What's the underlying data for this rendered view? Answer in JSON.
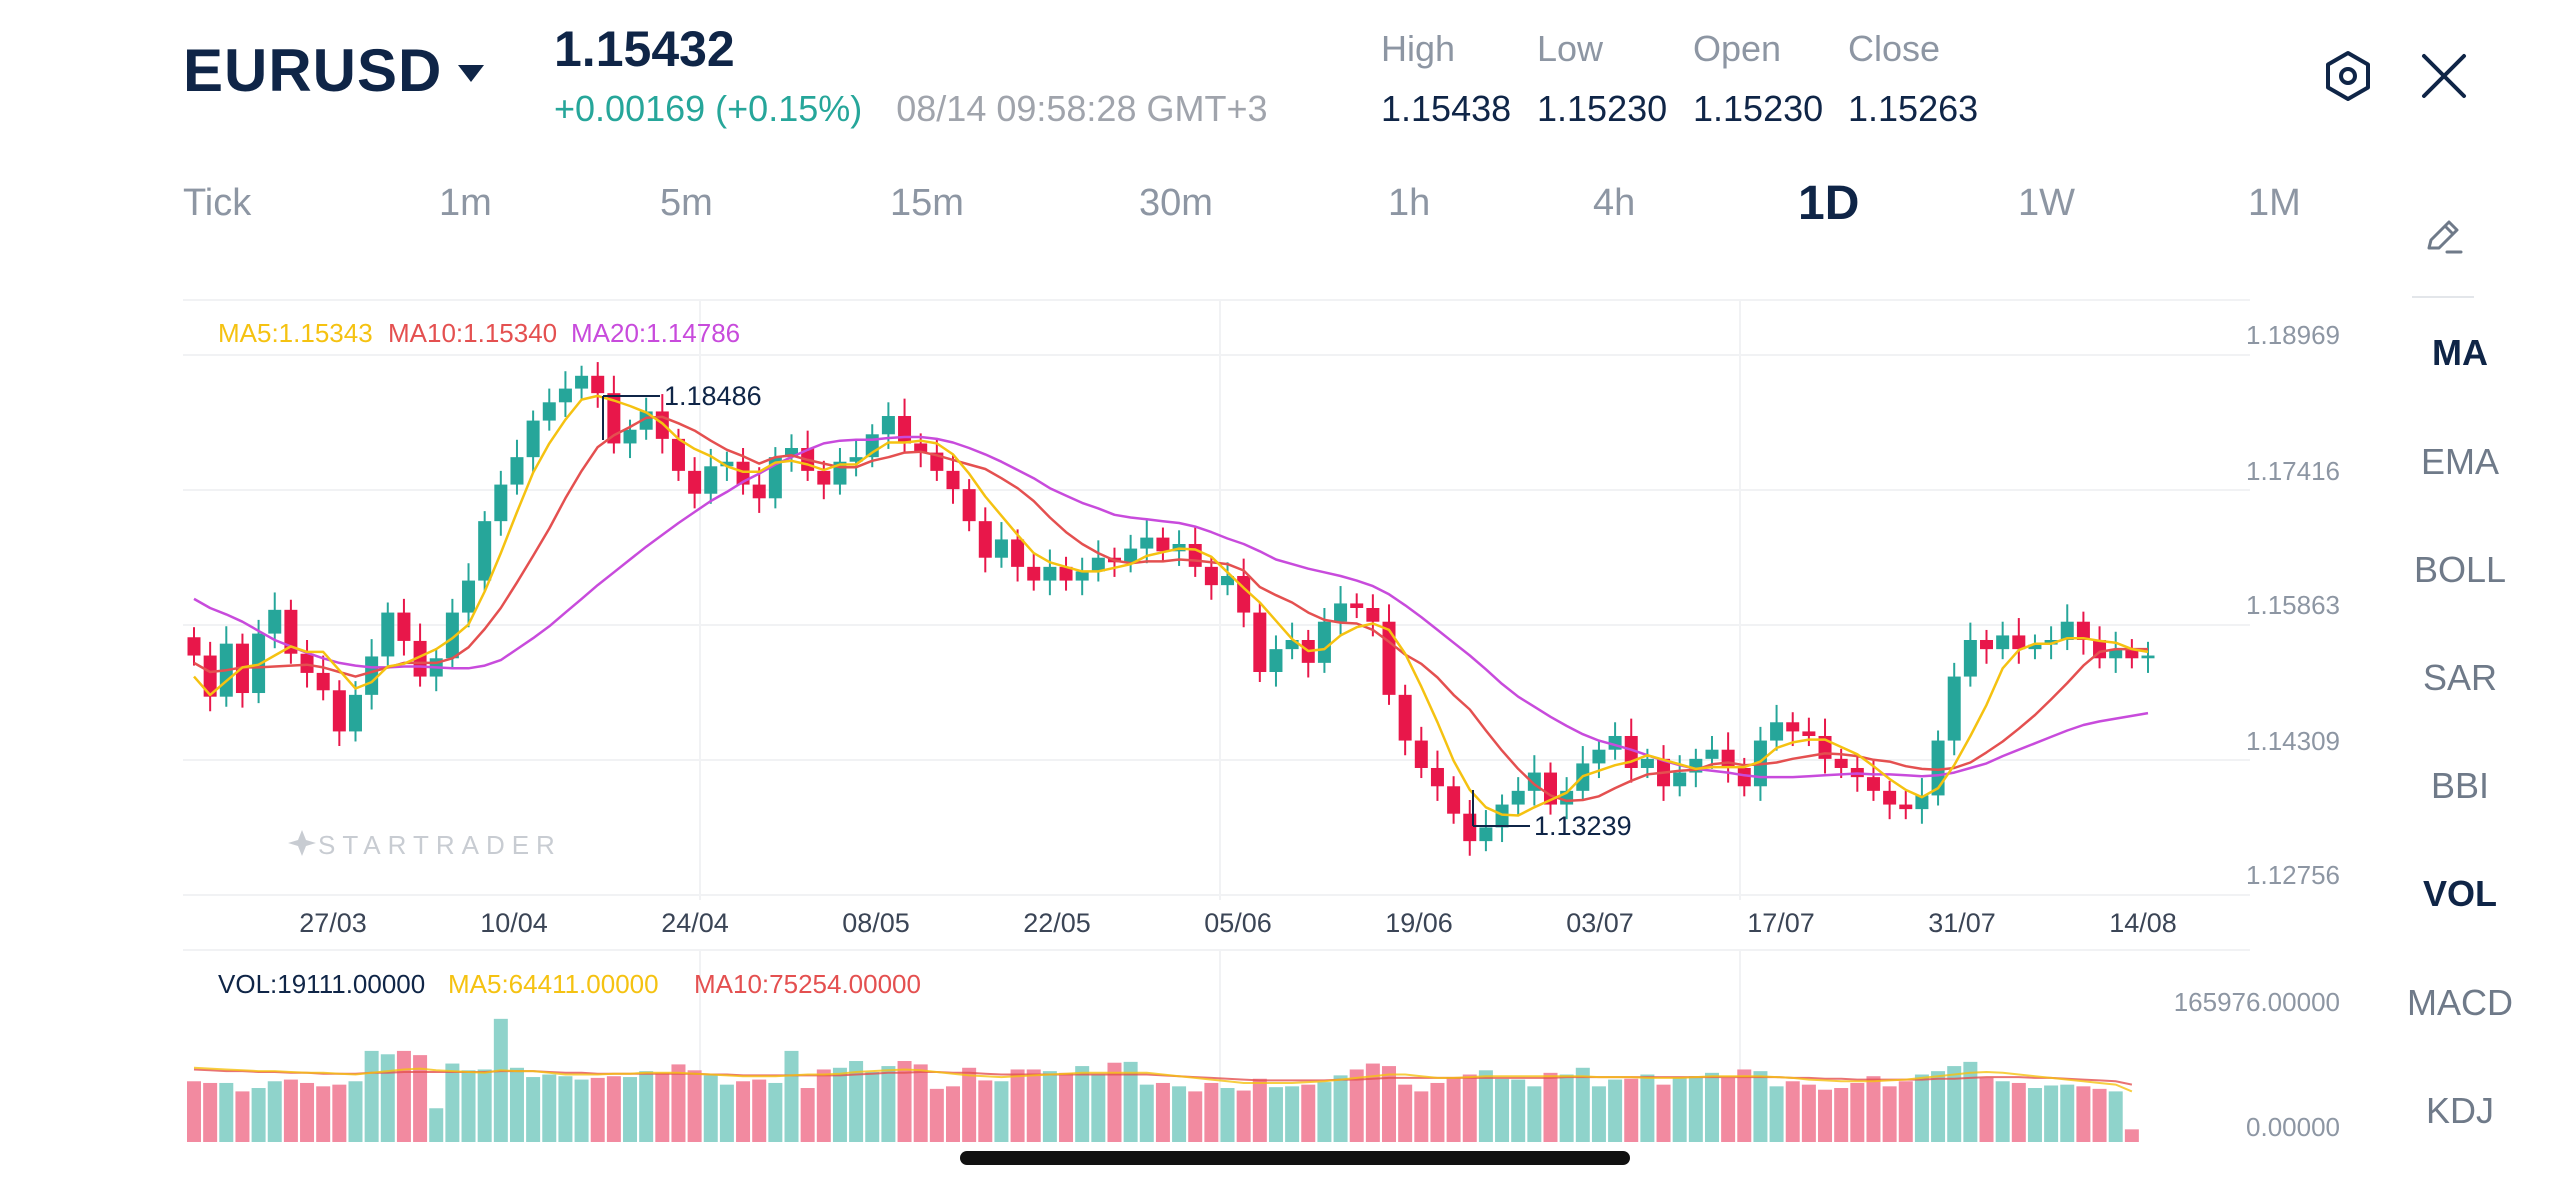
{
  "header": {
    "symbol": "EURUSD",
    "price": "1.15432",
    "change": "+0.00169 (+0.15%)",
    "time": "08/14 09:58:28 GMT+3",
    "ohlc": [
      {
        "label": "High",
        "value": "1.15438"
      },
      {
        "label": "Low",
        "value": "1.15230"
      },
      {
        "label": "Open",
        "value": "1.15230"
      },
      {
        "label": "Close",
        "value": "1.15263"
      }
    ]
  },
  "icons": {
    "settings": "hexagon-gear-icon",
    "close": "close-icon",
    "draw": "pencil-icon"
  },
  "timeframes": [
    "Tick",
    "1m",
    "5m",
    "15m",
    "30m",
    "1h",
    "4h",
    "1D",
    "1W",
    "1M"
  ],
  "active_timeframe": "1D",
  "indicators": [
    "MA",
    "EMA",
    "BOLL",
    "SAR",
    "BBI",
    "VOL",
    "MACD",
    "KDJ"
  ],
  "active_indicators": [
    "MA",
    "VOL"
  ],
  "colors": {
    "up": "#26a69a",
    "down": "#e8174a",
    "ma5": "#f5c211",
    "ma10": "#e45050",
    "ma20": "#c84bdc",
    "vol_up": "#8fd3cb",
    "vol_down": "#f28aa0"
  },
  "watermark": "STARTRADER",
  "chart_data": {
    "type": "candlestick",
    "legend": {
      "ma5": "MA5:1.15343",
      "ma10": "MA10:1.15340",
      "ma20": "MA20:1.14786"
    },
    "y_ticks": [
      "1.18969",
      "1.17416",
      "1.15863",
      "1.14309",
      "1.12756"
    ],
    "ylim": [
      1.12756,
      1.18969
    ],
    "x_ticks": [
      "27/03",
      "10/04",
      "24/04",
      "08/05",
      "22/05",
      "05/06",
      "19/06",
      "03/07",
      "17/07",
      "31/07",
      "14/08"
    ],
    "high_marker": "1.18486",
    "low_marker": "1.13239",
    "close_series": [
      1.1543,
      1.1498,
      1.1556,
      1.1502,
      1.1567,
      1.1593,
      1.1545,
      1.1524,
      1.1505,
      1.146,
      1.15,
      1.1542,
      1.159,
      1.1559,
      1.152,
      1.154,
      1.159,
      1.1625,
      1.169,
      1.173,
      1.176,
      1.18,
      1.182,
      1.1835,
      1.1849,
      1.183,
      1.1775,
      1.179,
      1.181,
      1.178,
      1.1745,
      1.172,
      1.175,
      1.1755,
      1.173,
      1.1715,
      1.176,
      1.177,
      1.1745,
      1.173,
      1.1755,
      1.176,
      1.1785,
      1.1805,
      1.1775,
      1.1765,
      1.1745,
      1.1725,
      1.169,
      1.165,
      1.167,
      1.164,
      1.1625,
      1.164,
      1.1625,
      1.1635,
      1.165,
      1.1645,
      1.166,
      1.1672,
      1.1657,
      1.1665,
      1.164,
      1.162,
      1.163,
      1.159,
      1.1525,
      1.155,
      1.156,
      1.1535,
      1.158,
      1.16,
      1.1595,
      1.158,
      1.15,
      1.145,
      1.142,
      1.14,
      1.137,
      1.134,
      1.1355,
      1.138,
      1.1395,
      1.1415,
      1.138,
      1.1395,
      1.1425,
      1.144,
      1.1455,
      1.142,
      1.143,
      1.14,
      1.1415,
      1.143,
      1.144,
      1.142,
      1.14,
      1.145,
      1.147,
      1.146,
      1.1455,
      1.143,
      1.142,
      1.141,
      1.1395,
      1.138,
      1.1375,
      1.139,
      1.145,
      1.152,
      1.156,
      1.155,
      1.1565,
      1.155,
      1.1555,
      1.156,
      1.158,
      1.156,
      1.154,
      1.155,
      1.154,
      1.1543
    ],
    "ma5_series": [
      1.152,
      1.15,
      1.1515,
      1.153,
      1.1533,
      1.1543,
      1.1553,
      1.1547,
      1.1547,
      1.1527,
      1.1507,
      1.1514,
      1.1531,
      1.1534,
      1.1542,
      1.155,
      1.1562,
      1.1577,
      1.1613,
      1.1655,
      1.17,
      1.1743,
      1.1775,
      1.1801,
      1.1823,
      1.1827,
      1.1822,
      1.1816,
      1.1809,
      1.1797,
      1.178,
      1.1769,
      1.1761,
      1.175,
      1.1744,
      1.1744,
      1.1754,
      1.1756,
      1.1752,
      1.1746,
      1.1752,
      1.1752,
      1.1765,
      1.1776,
      1.1776,
      1.1778,
      1.1775,
      1.1763,
      1.1742,
      1.1717,
      1.1696,
      1.1675,
      1.1655,
      1.1645,
      1.164,
      1.1635,
      1.1635,
      1.1639,
      1.1643,
      1.1652,
      1.1656,
      1.166,
      1.1659,
      1.1651,
      1.1634,
      1.1617,
      1.1601,
      1.1581,
      1.1561,
      1.1548,
      1.155,
      1.1565,
      1.1574,
      1.1578,
      1.1571,
      1.1545,
      1.1509,
      1.147,
      1.1428,
      1.1396,
      1.1377,
      1.1369,
      1.1368,
      1.1377,
      1.1385,
      1.1393,
      1.1411,
      1.1417,
      1.1423,
      1.1427,
      1.1434,
      1.1429,
      1.1424,
      1.1419,
      1.1421,
      1.1421,
      1.1421,
      1.1427,
      1.1442,
      1.1448,
      1.1451,
      1.1451,
      1.1443,
      1.1435,
      1.1422,
      1.1408,
      1.1396,
      1.1388,
      1.1398,
      1.1423,
      1.1455,
      1.1489,
      1.1529,
      1.1549,
      1.1556,
      1.1556,
      1.1562,
      1.1562,
      1.1559,
      1.1557,
      1.155,
      1.1547
    ],
    "ma10_series": [
      1.1535,
      1.1525,
      1.1527,
      1.153,
      1.153,
      1.1531,
      1.1532,
      1.1533,
      1.153,
      1.1525,
      1.152,
      1.1525,
      1.153,
      1.1535,
      1.1535,
      1.1535,
      1.154,
      1.1552,
      1.1572,
      1.1595,
      1.1623,
      1.1652,
      1.1682,
      1.1715,
      1.1745,
      1.1771,
      1.1784,
      1.1793,
      1.1803,
      1.1804,
      1.1797,
      1.1789,
      1.1778,
      1.1768,
      1.1761,
      1.1753,
      1.176,
      1.1762,
      1.1757,
      1.1753,
      1.1749,
      1.1749,
      1.1756,
      1.176,
      1.1765,
      1.1766,
      1.1762,
      1.1757,
      1.1752,
      1.1747,
      1.1737,
      1.1726,
      1.1712,
      1.1694,
      1.1678,
      1.1665,
      1.1655,
      1.1647,
      1.1644,
      1.1646,
      1.1646,
      1.1648,
      1.1647,
      1.1645,
      1.1643,
      1.1636,
      1.1618,
      1.1609,
      1.1601,
      1.159,
      1.1582,
      1.1579,
      1.1578,
      1.1571,
      1.1558,
      1.1544,
      1.1534,
      1.1519,
      1.15,
      1.1484,
      1.1461,
      1.1439,
      1.1419,
      1.1402,
      1.139,
      1.1384,
      1.1385,
      1.1389,
      1.1398,
      1.1406,
      1.1413,
      1.1415,
      1.1417,
      1.1418,
      1.1424,
      1.1426,
      1.1423,
      1.1424,
      1.1426,
      1.143,
      1.1433,
      1.1436,
      1.1435,
      1.1433,
      1.1429,
      1.1427,
      1.1422,
      1.1419,
      1.1418,
      1.142,
      1.1426,
      1.1437,
      1.1449,
      1.1463,
      1.1478,
      1.1495,
      1.1513,
      1.1532,
      1.1547,
      1.155,
      1.155,
      1.155
    ],
    "ma20_series": [
      1.1605,
      1.1595,
      1.1588,
      1.158,
      1.157,
      1.156,
      1.1553,
      1.1546,
      1.154,
      1.1535,
      1.1532,
      1.153,
      1.153,
      1.1531,
      1.1531,
      1.153,
      1.1529,
      1.1529,
      1.1532,
      1.1538,
      1.155,
      1.1562,
      1.1575,
      1.159,
      1.1605,
      1.162,
      1.1634,
      1.1648,
      1.1662,
      1.1675,
      1.1688,
      1.17,
      1.1712,
      1.1722,
      1.1733,
      1.1742,
      1.1752,
      1.176,
      1.1768,
      1.1775,
      1.1778,
      1.1779,
      1.1779,
      1.1781,
      1.1782,
      1.1782,
      1.178,
      1.1776,
      1.177,
      1.1763,
      1.1755,
      1.1746,
      1.1737,
      1.1726,
      1.1718,
      1.171,
      1.1704,
      1.1697,
      1.1694,
      1.1692,
      1.169,
      1.1688,
      1.1684,
      1.1678,
      1.1671,
      1.1665,
      1.1657,
      1.1648,
      1.1643,
      1.1638,
      1.1634,
      1.163,
      1.1625,
      1.1619,
      1.161,
      1.1598,
      1.1585,
      1.1571,
      1.1557,
      1.1543,
      1.1528,
      1.1512,
      1.1498,
      1.1487,
      1.1476,
      1.1466,
      1.1457,
      1.145,
      1.1445,
      1.144,
      1.1434,
      1.1428,
      1.1423,
      1.1419,
      1.1417,
      1.1415,
      1.1412,
      1.141,
      1.141,
      1.141,
      1.1411,
      1.1412,
      1.1413,
      1.1414,
      1.1413,
      1.1413,
      1.1412,
      1.1411,
      1.1412,
      1.1415,
      1.142,
      1.1425,
      1.1433,
      1.144,
      1.1447,
      1.1454,
      1.1461,
      1.1467,
      1.1471,
      1.1474,
      1.1477,
      1.148
    ],
    "volume_legend": {
      "vol": "VOL:19111.00000",
      "ma5": "MA5:64411.00000",
      "ma10": "MA10:75254.00000"
    },
    "volume_ticks": [
      "165976.00000",
      "0.00000"
    ],
    "volume_ylim": [
      0,
      165976
    ],
    "volume_series": [
      72000,
      70000,
      70000,
      60000,
      64000,
      72000,
      74000,
      70000,
      66000,
      68000,
      72000,
      108000,
      104000,
      108000,
      103000,
      40000,
      93000,
      85000,
      86000,
      146000,
      88000,
      77000,
      80000,
      78000,
      74000,
      76000,
      78000,
      77000,
      84000,
      82000,
      92000,
      85000,
      79000,
      68000,
      72000,
      74000,
      70000,
      108000,
      64000,
      86000,
      88000,
      96000,
      83000,
      90000,
      96000,
      92000,
      63000,
      66000,
      88000,
      73000,
      72000,
      86000,
      86000,
      84000,
      82000,
      90000,
      80000,
      94000,
      95000,
      68000,
      70000,
      66000,
      60000,
      70000,
      64000,
      61000,
      75000,
      65000,
      66000,
      68000,
      71000,
      79000,
      86000,
      93000,
      90000,
      68000,
      60000,
      70000,
      77000,
      80000,
      85000,
      75000,
      74000,
      66000,
      82000,
      80000,
      88000,
      66000,
      74000,
      75000,
      80000,
      68000,
      76000,
      78000,
      82000,
      76000,
      86000,
      84000,
      66000,
      72000,
      68000,
      62000,
      64000,
      70000,
      78000,
      66000,
      72000,
      80000,
      84000,
      90000,
      95000,
      76000,
      72000,
      70000,
      64000,
      67000,
      68000,
      66000,
      63000,
      60000,
      15000
    ],
    "volume_ma5": [
      88000,
      87000,
      86000,
      85000,
      84000,
      84000,
      83000,
      82000,
      82000,
      81000,
      80000,
      82000,
      84000,
      86000,
      87000,
      85000,
      84000,
      83000,
      82000,
      85000,
      84000,
      84000,
      82000,
      80000,
      80000,
      80000,
      81000,
      81000,
      82000,
      82000,
      82000,
      81000,
      80000,
      79000,
      78000,
      78000,
      78000,
      79000,
      80000,
      80000,
      81000,
      83000,
      84000,
      85000,
      86000,
      85000,
      83000,
      81000,
      79000,
      78000,
      77000,
      78000,
      79000,
      80000,
      81000,
      82000,
      82000,
      82000,
      82000,
      82000,
      80000,
      78000,
      76000,
      74000,
      72000,
      70000,
      70000,
      70000,
      70000,
      71000,
      72000,
      74000,
      76000,
      78000,
      80000,
      80000,
      78000,
      76000,
      76000,
      77000,
      78000,
      78000,
      78000,
      78000,
      78000,
      78000,
      78000,
      77000,
      77000,
      77000,
      76000,
      76000,
      76000,
      77000,
      78000,
      78000,
      78000,
      78000,
      77000,
      76000,
      74000,
      73000,
      72000,
      72000,
      72000,
      73000,
      74000,
      76000,
      78000,
      80000,
      82000,
      83000,
      82000,
      80000,
      78000,
      76000,
      74000,
      72000,
      70000,
      68000,
      60000
    ],
    "volume_ma10": [
      86000,
      85000,
      84000,
      84000,
      83000,
      83000,
      82000,
      82000,
      81000,
      81000,
      81000,
      82000,
      82000,
      83000,
      83000,
      83000,
      83000,
      83000,
      83000,
      84000,
      84000,
      84000,
      83000,
      82000,
      82000,
      81000,
      81000,
      81000,
      81000,
      81000,
      81000,
      81000,
      80000,
      80000,
      79000,
      79000,
      79000,
      79000,
      79000,
      79000,
      79000,
      80000,
      81000,
      82000,
      82000,
      83000,
      83000,
      82000,
      82000,
      81000,
      80000,
      80000,
      80000,
      80000,
      80000,
      80000,
      80000,
      80000,
      80000,
      80000,
      79000,
      78000,
      77000,
      76000,
      75000,
      74000,
      73000,
      73000,
      73000,
      73000,
      73000,
      74000,
      74000,
      75000,
      76000,
      76000,
      76000,
      76000,
      76000,
      76000,
      76000,
      76000,
      76000,
      76000,
      76000,
      77000,
      77000,
      77000,
      77000,
      77000,
      77000,
      77000,
      77000,
      77000,
      77000,
      77000,
      77000,
      77000,
      77000,
      76000,
      76000,
      75000,
      75000,
      74000,
      74000,
      74000,
      74000,
      74000,
      75000,
      75000,
      76000,
      77000,
      77000,
      77000,
      76000,
      76000,
      75000,
      74000,
      73000,
      72000,
      68000
    ]
  }
}
